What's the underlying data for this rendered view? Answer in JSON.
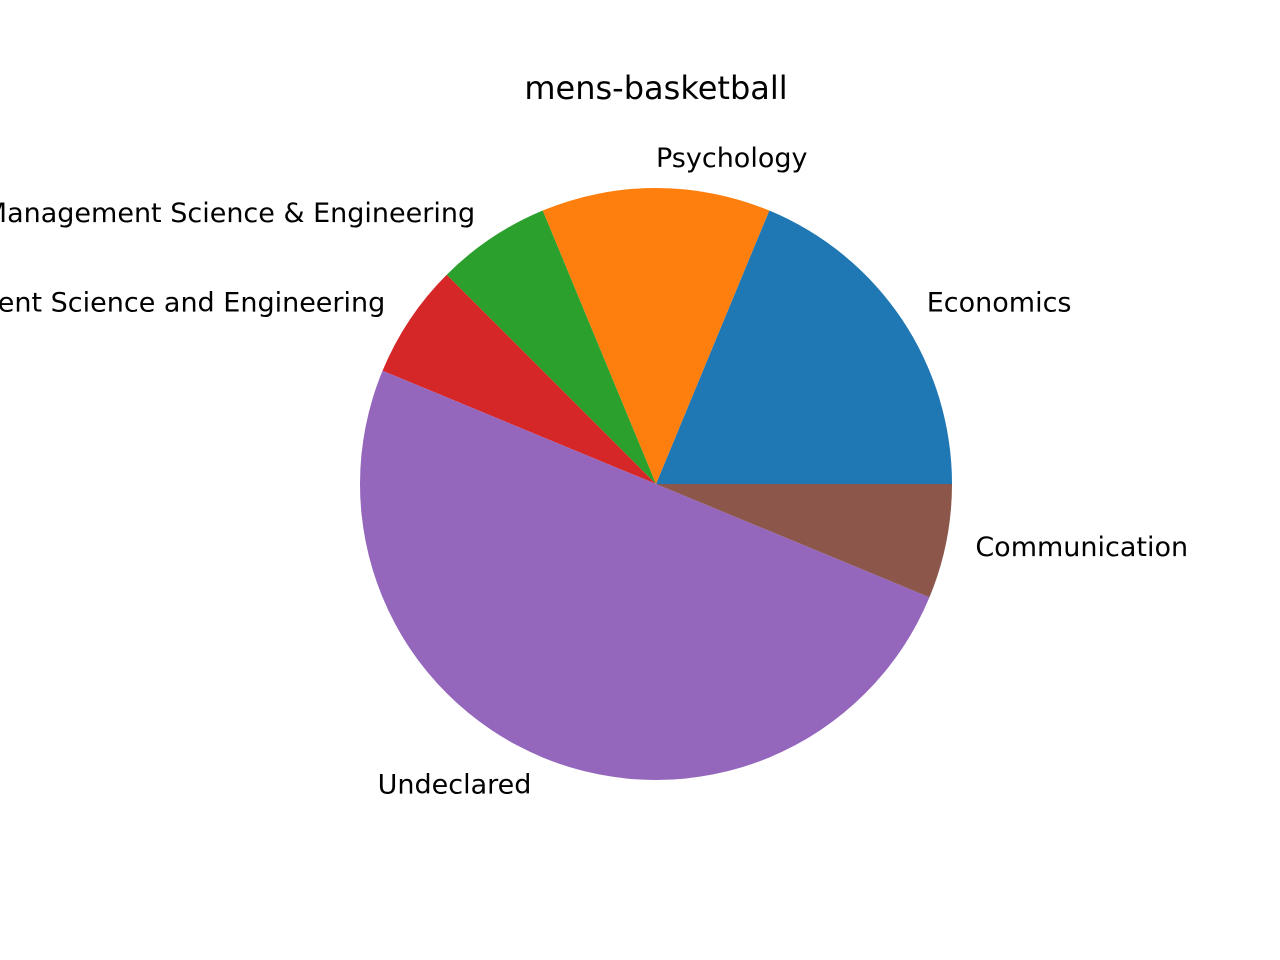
{
  "chart_data": {
    "type": "pie",
    "title": "mens-basketball",
    "start_angle": 0,
    "direction": "counterclockwise",
    "slices": [
      {
        "label": "Economics",
        "value": 3,
        "color": "#1f77b4"
      },
      {
        "label": "Psychology",
        "value": 2,
        "color": "#ff7f0e"
      },
      {
        "label": "Management Science & Engineering",
        "value": 1,
        "color": "#2ca02c"
      },
      {
        "label": "Management Science and Engineering",
        "value": 1,
        "color": "#d62728"
      },
      {
        "label": "Undeclared",
        "value": 8,
        "color": "#9467bd"
      },
      {
        "label": "Communication",
        "value": 1,
        "color": "#8c564b"
      }
    ]
  }
}
